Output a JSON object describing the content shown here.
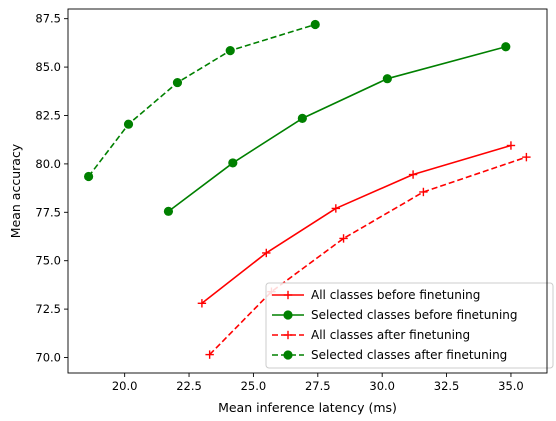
{
  "chart_data": {
    "type": "line",
    "title": "",
    "xlabel": "Mean inference latency (ms)",
    "ylabel": "Mean accuracy",
    "xlim": [
      17.8,
      36.4
    ],
    "ylim": [
      69.2,
      88.0
    ],
    "xticks": [
      20.0,
      22.5,
      25.0,
      27.5,
      30.0,
      32.5,
      35.0
    ],
    "xtick_labels": [
      "20.0",
      "22.5",
      "25.0",
      "27.5",
      "30.0",
      "32.5",
      "35.0"
    ],
    "yticks": [
      70.0,
      72.5,
      75.0,
      77.5,
      80.0,
      82.5,
      85.0,
      87.5
    ],
    "ytick_labels": [
      "70.0",
      "72.5",
      "75.0",
      "77.5",
      "80.0",
      "82.5",
      "85.0",
      "87.5"
    ],
    "grid": false,
    "legend_position": "lower-right",
    "series": [
      {
        "name": "All classes before finetuning",
        "color": "#ff0000",
        "linestyle": "solid",
        "marker": "plus",
        "x": [
          23.0,
          25.5,
          28.2,
          31.2,
          35.0
        ],
        "y": [
          72.8,
          75.4,
          77.7,
          79.45,
          80.95
        ]
      },
      {
        "name": "Selected classes before finetuning",
        "color": "#008000",
        "linestyle": "solid",
        "marker": "circle",
        "x": [
          21.7,
          24.2,
          26.9,
          30.2,
          34.8
        ],
        "y": [
          77.55,
          80.05,
          82.35,
          84.4,
          86.05
        ]
      },
      {
        "name": "All classes after finetuning",
        "color": "#ff0000",
        "linestyle": "dashed",
        "marker": "plus",
        "x": [
          23.3,
          25.7,
          28.5,
          31.6,
          35.6
        ],
        "y": [
          70.15,
          73.4,
          76.15,
          78.55,
          80.35
        ]
      },
      {
        "name": "Selected classes after finetuning",
        "color": "#008000",
        "linestyle": "dashed",
        "marker": "circle",
        "x": [
          18.6,
          20.15,
          22.05,
          24.1,
          27.4
        ],
        "y": [
          79.35,
          82.05,
          84.2,
          85.85,
          87.2
        ]
      }
    ]
  }
}
